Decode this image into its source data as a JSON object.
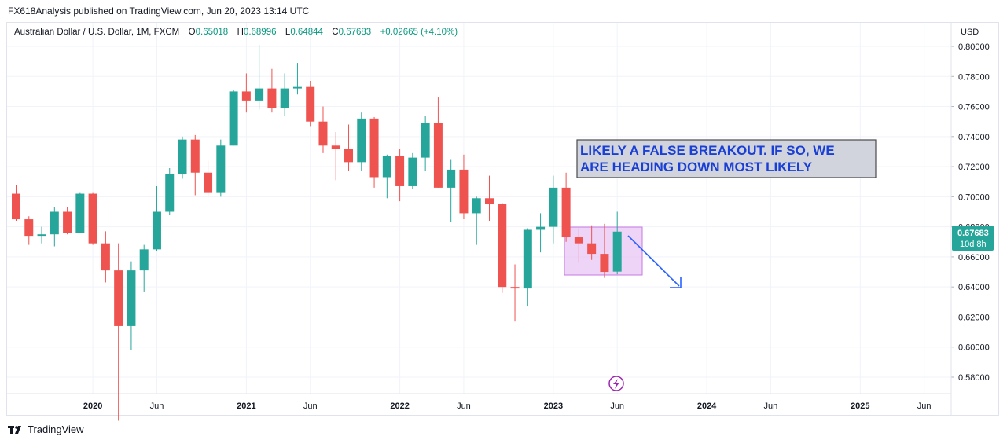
{
  "header": {
    "publish_line": "FX618Analysis published on TradingView.com, Jun 20, 2023 13:14 UTC"
  },
  "symbol_bar": {
    "symbol": "Australian Dollar / U.S. Dollar, 1M, FXCM",
    "open_label": "O",
    "open": "0.65018",
    "high_label": "H",
    "high": "0.68996",
    "low_label": "L",
    "low": "0.64844",
    "close_label": "C",
    "close": "0.67683",
    "change": "+0.02665 (+4.10%)"
  },
  "price_axis": {
    "currency": "USD",
    "last_price": "0.67683",
    "countdown": "10d 8h"
  },
  "annotation": {
    "line1": "LIKELY A FALSE BREAKOUT. IF SO, WE",
    "line2": "ARE HEADING DOWN MOST LIKELY"
  },
  "footer": {
    "brand": "TradingView"
  },
  "colors": {
    "up": "#26a69a",
    "down": "#ef5350",
    "annotation_text": "#1a3fd6",
    "range_box": "#c67ae0",
    "arrow": "#2962ff"
  },
  "icons": {
    "event": "lightning-icon",
    "logo": "tradingview-logo-icon"
  },
  "chart_data": {
    "type": "candlestick",
    "timeframe": "1M",
    "ylim": [
      0.57,
      0.81
    ],
    "y_ticks": [
      "0.80000",
      "0.78000",
      "0.76000",
      "0.74000",
      "0.72000",
      "0.70000",
      "0.68000",
      "0.66000",
      "0.64000",
      "0.62000",
      "0.60000",
      "0.58000"
    ],
    "x_ticks": [
      "2020",
      "Jun",
      "2021",
      "Jun",
      "2022",
      "Jun",
      "2023",
      "Jun",
      "2024",
      "Jun",
      "2025",
      "Jun"
    ],
    "last_price": 0.67683,
    "candles": [
      {
        "t": "2019-07",
        "o": 0.702,
        "h": 0.708,
        "l": 0.684,
        "c": 0.685
      },
      {
        "t": "2019-08",
        "o": 0.685,
        "h": 0.687,
        "l": 0.668,
        "c": 0.674
      },
      {
        "t": "2019-09",
        "o": 0.674,
        "h": 0.68,
        "l": 0.669,
        "c": 0.675
      },
      {
        "t": "2019-10",
        "o": 0.675,
        "h": 0.693,
        "l": 0.667,
        "c": 0.69
      },
      {
        "t": "2019-11",
        "o": 0.69,
        "h": 0.693,
        "l": 0.675,
        "c": 0.676
      },
      {
        "t": "2019-12",
        "o": 0.676,
        "h": 0.703,
        "l": 0.676,
        "c": 0.702
      },
      {
        "t": "2020-01",
        "o": 0.702,
        "h": 0.703,
        "l": 0.668,
        "c": 0.669
      },
      {
        "t": "2020-02",
        "o": 0.669,
        "h": 0.677,
        "l": 0.643,
        "c": 0.651
      },
      {
        "t": "2020-03",
        "o": 0.651,
        "h": 0.669,
        "l": 0.551,
        "c": 0.614
      },
      {
        "t": "2020-04",
        "o": 0.614,
        "h": 0.657,
        "l": 0.598,
        "c": 0.651
      },
      {
        "t": "2020-05",
        "o": 0.651,
        "h": 0.668,
        "l": 0.637,
        "c": 0.665
      },
      {
        "t": "2020-06",
        "o": 0.665,
        "h": 0.707,
        "l": 0.664,
        "c": 0.69
      },
      {
        "t": "2020-07",
        "o": 0.69,
        "h": 0.719,
        "l": 0.688,
        "c": 0.715
      },
      {
        "t": "2020-08",
        "o": 0.715,
        "h": 0.74,
        "l": 0.712,
        "c": 0.738
      },
      {
        "t": "2020-09",
        "o": 0.738,
        "h": 0.741,
        "l": 0.701,
        "c": 0.716
      },
      {
        "t": "2020-10",
        "o": 0.716,
        "h": 0.724,
        "l": 0.7,
        "c": 0.703
      },
      {
        "t": "2020-11",
        "o": 0.703,
        "h": 0.738,
        "l": 0.7,
        "c": 0.734
      },
      {
        "t": "2020-12",
        "o": 0.734,
        "h": 0.771,
        "l": 0.734,
        "c": 0.77
      },
      {
        "t": "2021-01",
        "o": 0.77,
        "h": 0.782,
        "l": 0.756,
        "c": 0.764
      },
      {
        "t": "2021-02",
        "o": 0.764,
        "h": 0.801,
        "l": 0.758,
        "c": 0.772
      },
      {
        "t": "2021-03",
        "o": 0.772,
        "h": 0.785,
        "l": 0.756,
        "c": 0.759
      },
      {
        "t": "2021-04",
        "o": 0.759,
        "h": 0.782,
        "l": 0.754,
        "c": 0.772
      },
      {
        "t": "2021-05",
        "o": 0.772,
        "h": 0.789,
        "l": 0.768,
        "c": 0.773
      },
      {
        "t": "2021-06",
        "o": 0.773,
        "h": 0.777,
        "l": 0.747,
        "c": 0.75
      },
      {
        "t": "2021-07",
        "o": 0.75,
        "h": 0.76,
        "l": 0.729,
        "c": 0.734
      },
      {
        "t": "2021-08",
        "o": 0.734,
        "h": 0.743,
        "l": 0.711,
        "c": 0.732
      },
      {
        "t": "2021-09",
        "o": 0.732,
        "h": 0.748,
        "l": 0.717,
        "c": 0.723
      },
      {
        "t": "2021-10",
        "o": 0.723,
        "h": 0.756,
        "l": 0.717,
        "c": 0.752
      },
      {
        "t": "2021-11",
        "o": 0.752,
        "h": 0.753,
        "l": 0.706,
        "c": 0.713
      },
      {
        "t": "2021-12",
        "o": 0.713,
        "h": 0.728,
        "l": 0.699,
        "c": 0.727
      },
      {
        "t": "2022-01",
        "o": 0.727,
        "h": 0.732,
        "l": 0.697,
        "c": 0.707
      },
      {
        "t": "2022-02",
        "o": 0.707,
        "h": 0.729,
        "l": 0.705,
        "c": 0.726
      },
      {
        "t": "2022-03",
        "o": 0.726,
        "h": 0.754,
        "l": 0.717,
        "c": 0.749
      },
      {
        "t": "2022-04",
        "o": 0.749,
        "h": 0.766,
        "l": 0.706,
        "c": 0.706
      },
      {
        "t": "2022-05",
        "o": 0.706,
        "h": 0.725,
        "l": 0.683,
        "c": 0.718
      },
      {
        "t": "2022-06",
        "o": 0.718,
        "h": 0.728,
        "l": 0.685,
        "c": 0.689
      },
      {
        "t": "2022-07",
        "o": 0.689,
        "h": 0.7,
        "l": 0.668,
        "c": 0.699
      },
      {
        "t": "2022-08",
        "o": 0.699,
        "h": 0.714,
        "l": 0.684,
        "c": 0.695
      },
      {
        "t": "2022-09",
        "o": 0.695,
        "h": 0.696,
        "l": 0.636,
        "c": 0.64
      },
      {
        "t": "2022-10",
        "o": 0.64,
        "h": 0.655,
        "l": 0.617,
        "c": 0.639
      },
      {
        "t": "2022-11",
        "o": 0.639,
        "h": 0.679,
        "l": 0.627,
        "c": 0.678
      },
      {
        "t": "2022-12",
        "o": 0.678,
        "h": 0.689,
        "l": 0.663,
        "c": 0.68
      },
      {
        "t": "2023-01",
        "o": 0.68,
        "h": 0.714,
        "l": 0.669,
        "c": 0.706
      },
      {
        "t": "2023-02",
        "o": 0.706,
        "h": 0.716,
        "l": 0.67,
        "c": 0.673
      },
      {
        "t": "2023-03",
        "o": 0.673,
        "h": 0.679,
        "l": 0.656,
        "c": 0.669
      },
      {
        "t": "2023-04",
        "o": 0.669,
        "h": 0.681,
        "l": 0.658,
        "c": 0.662
      },
      {
        "t": "2023-05",
        "o": 0.662,
        "h": 0.682,
        "l": 0.646,
        "c": 0.65
      },
      {
        "t": "2023-06",
        "o": 0.6502,
        "h": 0.69,
        "l": 0.6484,
        "c": 0.6768
      }
    ]
  }
}
